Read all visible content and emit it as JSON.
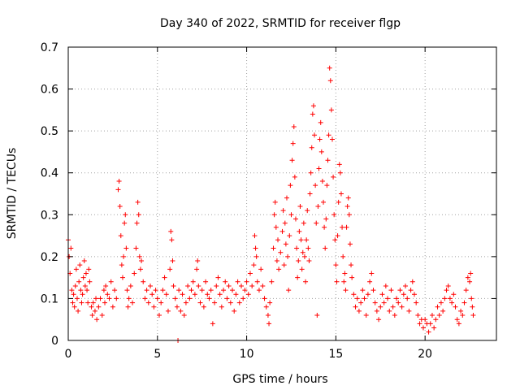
{
  "chart_data": {
    "type": "scatter",
    "title": "Day 340 of 2022, SRMTID for receiver flgp",
    "xlabel": "GPS time / hours",
    "ylabel": "SRMTID / TECUs",
    "xlim": [
      0,
      24
    ],
    "ylim": [
      0,
      0.7
    ],
    "grid": true,
    "marker": "+",
    "marker_color": "#ff0000",
    "xticks": [
      0,
      5,
      10,
      15,
      20
    ],
    "xtick_labels": [
      "0",
      "5",
      "10",
      "15",
      "20"
    ],
    "yticks": [
      0,
      0.1,
      0.2,
      0.3,
      0.4,
      0.5,
      0.6,
      0.7
    ],
    "ytick_labels": [
      "0",
      "0.1",
      "0.2",
      "0.3",
      "0.4",
      "0.5",
      "0.6",
      "0.7"
    ],
    "series": [
      {
        "name": "SRMTID",
        "points": [
          [
            0.0,
            0.24
          ],
          [
            0.05,
            0.2
          ],
          [
            0.1,
            0.16
          ],
          [
            0.15,
            0.22
          ],
          [
            0.2,
            0.12
          ],
          [
            0.25,
            0.09
          ],
          [
            0.3,
            0.11
          ],
          [
            0.35,
            0.08
          ],
          [
            0.4,
            0.13
          ],
          [
            0.45,
            0.17
          ],
          [
            0.5,
            0.1
          ],
          [
            0.55,
            0.07
          ],
          [
            0.6,
            0.14
          ],
          [
            0.65,
            0.18
          ],
          [
            0.7,
            0.12
          ],
          [
            0.75,
            0.09
          ],
          [
            0.8,
            0.11
          ],
          [
            0.85,
            0.15
          ],
          [
            0.9,
            0.19
          ],
          [
            0.95,
            0.13
          ],
          [
            1.0,
            0.16
          ],
          [
            1.05,
            0.12
          ],
          [
            1.1,
            0.09
          ],
          [
            1.15,
            0.17
          ],
          [
            1.2,
            0.14
          ],
          [
            1.3,
            0.08
          ],
          [
            1.35,
            0.06
          ],
          [
            1.4,
            0.09
          ],
          [
            1.5,
            0.07
          ],
          [
            1.55,
            0.1
          ],
          [
            1.6,
            0.05
          ],
          [
            1.7,
            0.08
          ],
          [
            1.8,
            0.1
          ],
          [
            1.9,
            0.06
          ],
          [
            2.0,
            0.12
          ],
          [
            2.05,
            0.09
          ],
          [
            2.1,
            0.13
          ],
          [
            2.2,
            0.11
          ],
          [
            2.3,
            0.1
          ],
          [
            2.4,
            0.14
          ],
          [
            2.5,
            0.08
          ],
          [
            2.6,
            0.12
          ],
          [
            2.7,
            0.1
          ],
          [
            2.8,
            0.36
          ],
          [
            2.85,
            0.38
          ],
          [
            2.9,
            0.32
          ],
          [
            2.95,
            0.25
          ],
          [
            3.0,
            0.18
          ],
          [
            3.05,
            0.15
          ],
          [
            3.1,
            0.2
          ],
          [
            3.15,
            0.28
          ],
          [
            3.2,
            0.3
          ],
          [
            3.25,
            0.22
          ],
          [
            3.3,
            0.12
          ],
          [
            3.35,
            0.08
          ],
          [
            3.4,
            0.1
          ],
          [
            3.5,
            0.13
          ],
          [
            3.6,
            0.09
          ],
          [
            3.7,
            0.16
          ],
          [
            3.8,
            0.22
          ],
          [
            3.85,
            0.28
          ],
          [
            3.9,
            0.33
          ],
          [
            3.95,
            0.3
          ],
          [
            4.0,
            0.2
          ],
          [
            4.05,
            0.17
          ],
          [
            4.1,
            0.19
          ],
          [
            4.2,
            0.14
          ],
          [
            4.3,
            0.1
          ],
          [
            4.4,
            0.12
          ],
          [
            4.5,
            0.09
          ],
          [
            4.6,
            0.13
          ],
          [
            4.7,
            0.11
          ],
          [
            4.8,
            0.08
          ],
          [
            4.9,
            0.12
          ],
          [
            5.0,
            0.1
          ],
          [
            5.1,
            0.06
          ],
          [
            5.2,
            0.09
          ],
          [
            5.3,
            0.12
          ],
          [
            5.4,
            0.15
          ],
          [
            5.5,
            0.11
          ],
          [
            5.6,
            0.07
          ],
          [
            5.7,
            0.17
          ],
          [
            5.75,
            0.26
          ],
          [
            5.8,
            0.24
          ],
          [
            5.85,
            0.19
          ],
          [
            5.9,
            0.13
          ],
          [
            6.0,
            0.1
          ],
          [
            6.1,
            0.08
          ],
          [
            6.15,
            0.0
          ],
          [
            6.2,
            0.12
          ],
          [
            6.3,
            0.07
          ],
          [
            6.4,
            0.11
          ],
          [
            6.5,
            0.06
          ],
          [
            6.6,
            0.09
          ],
          [
            6.7,
            0.13
          ],
          [
            6.8,
            0.1
          ],
          [
            6.9,
            0.12
          ],
          [
            7.0,
            0.14
          ],
          [
            7.1,
            0.11
          ],
          [
            7.2,
            0.17
          ],
          [
            7.25,
            0.19
          ],
          [
            7.3,
            0.13
          ],
          [
            7.4,
            0.09
          ],
          [
            7.5,
            0.12
          ],
          [
            7.6,
            0.08
          ],
          [
            7.7,
            0.14
          ],
          [
            7.8,
            0.11
          ],
          [
            7.9,
            0.1
          ],
          [
            8.0,
            0.12
          ],
          [
            8.1,
            0.04
          ],
          [
            8.2,
            0.09
          ],
          [
            8.3,
            0.13
          ],
          [
            8.4,
            0.15
          ],
          [
            8.5,
            0.11
          ],
          [
            8.6,
            0.08
          ],
          [
            8.7,
            0.12
          ],
          [
            8.8,
            0.14
          ],
          [
            8.9,
            0.1
          ],
          [
            9.0,
            0.13
          ],
          [
            9.1,
            0.09
          ],
          [
            9.2,
            0.12
          ],
          [
            9.3,
            0.07
          ],
          [
            9.4,
            0.11
          ],
          [
            9.5,
            0.14
          ],
          [
            9.6,
            0.09
          ],
          [
            9.7,
            0.13
          ],
          [
            9.8,
            0.1
          ],
          [
            9.9,
            0.12
          ],
          [
            10.0,
            0.14
          ],
          [
            10.1,
            0.11
          ],
          [
            10.2,
            0.16
          ],
          [
            10.3,
            0.13
          ],
          [
            10.4,
            0.18
          ],
          [
            10.45,
            0.25
          ],
          [
            10.5,
            0.22
          ],
          [
            10.55,
            0.2
          ],
          [
            10.6,
            0.14
          ],
          [
            10.7,
            0.12
          ],
          [
            10.8,
            0.17
          ],
          [
            10.9,
            0.13
          ],
          [
            11.0,
            0.1
          ],
          [
            11.1,
            0.08
          ],
          [
            11.2,
            0.06
          ],
          [
            11.25,
            0.04
          ],
          [
            11.3,
            0.09
          ],
          [
            11.4,
            0.14
          ],
          [
            11.5,
            0.22
          ],
          [
            11.55,
            0.3
          ],
          [
            11.6,
            0.33
          ],
          [
            11.65,
            0.27
          ],
          [
            11.7,
            0.19
          ],
          [
            11.75,
            0.24
          ],
          [
            11.8,
            0.17
          ],
          [
            11.9,
            0.21
          ],
          [
            12.0,
            0.26
          ],
          [
            12.05,
            0.31
          ],
          [
            12.1,
            0.18
          ],
          [
            12.15,
            0.28
          ],
          [
            12.2,
            0.23
          ],
          [
            12.25,
            0.34
          ],
          [
            12.3,
            0.2
          ],
          [
            12.35,
            0.12
          ],
          [
            12.4,
            0.25
          ],
          [
            12.45,
            0.37
          ],
          [
            12.5,
            0.3
          ],
          [
            12.55,
            0.43
          ],
          [
            12.6,
            0.47
          ],
          [
            12.65,
            0.51
          ],
          [
            12.7,
            0.39
          ],
          [
            12.75,
            0.29
          ],
          [
            12.8,
            0.22
          ],
          [
            12.85,
            0.15
          ],
          [
            12.9,
            0.19
          ],
          [
            12.95,
            0.26
          ],
          [
            13.0,
            0.32
          ],
          [
            13.05,
            0.24
          ],
          [
            13.1,
            0.17
          ],
          [
            13.15,
            0.21
          ],
          [
            13.2,
            0.28
          ],
          [
            13.25,
            0.2
          ],
          [
            13.3,
            0.14
          ],
          [
            13.35,
            0.24
          ],
          [
            13.4,
            0.31
          ],
          [
            13.45,
            0.22
          ],
          [
            13.5,
            0.19
          ],
          [
            13.55,
            0.35
          ],
          [
            13.6,
            0.4
          ],
          [
            13.65,
            0.46
          ],
          [
            13.7,
            0.54
          ],
          [
            13.75,
            0.56
          ],
          [
            13.8,
            0.49
          ],
          [
            13.85,
            0.37
          ],
          [
            13.9,
            0.28
          ],
          [
            13.95,
            0.06
          ],
          [
            14.0,
            0.32
          ],
          [
            14.05,
            0.41
          ],
          [
            14.1,
            0.48
          ],
          [
            14.15,
            0.52
          ],
          [
            14.2,
            0.45
          ],
          [
            14.25,
            0.38
          ],
          [
            14.3,
            0.33
          ],
          [
            14.35,
            0.27
          ],
          [
            14.4,
            0.22
          ],
          [
            14.45,
            0.29
          ],
          [
            14.5,
            0.37
          ],
          [
            14.55,
            0.43
          ],
          [
            14.6,
            0.49
          ],
          [
            14.65,
            0.65
          ],
          [
            14.7,
            0.62
          ],
          [
            14.75,
            0.55
          ],
          [
            14.8,
            0.48
          ],
          [
            14.85,
            0.39
          ],
          [
            14.9,
            0.3
          ],
          [
            14.95,
            0.24
          ],
          [
            15.0,
            0.18
          ],
          [
            15.05,
            0.14
          ],
          [
            15.1,
            0.25
          ],
          [
            15.15,
            0.33
          ],
          [
            15.2,
            0.42
          ],
          [
            15.25,
            0.4
          ],
          [
            15.3,
            0.35
          ],
          [
            15.35,
            0.27
          ],
          [
            15.4,
            0.2
          ],
          [
            15.45,
            0.14
          ],
          [
            15.5,
            0.16
          ],
          [
            15.55,
            0.12
          ],
          [
            15.6,
            0.27
          ],
          [
            15.65,
            0.32
          ],
          [
            15.7,
            0.34
          ],
          [
            15.75,
            0.3
          ],
          [
            15.8,
            0.23
          ],
          [
            15.85,
            0.18
          ],
          [
            15.9,
            0.15
          ],
          [
            16.0,
            0.11
          ],
          [
            16.1,
            0.08
          ],
          [
            16.2,
            0.1
          ],
          [
            16.3,
            0.07
          ],
          [
            16.4,
            0.09
          ],
          [
            16.5,
            0.12
          ],
          [
            16.6,
            0.1
          ],
          [
            16.7,
            0.06
          ],
          [
            16.8,
            0.11
          ],
          [
            16.9,
            0.14
          ],
          [
            17.0,
            0.16
          ],
          [
            17.1,
            0.12
          ],
          [
            17.2,
            0.09
          ],
          [
            17.3,
            0.07
          ],
          [
            17.4,
            0.05
          ],
          [
            17.5,
            0.08
          ],
          [
            17.6,
            0.11
          ],
          [
            17.7,
            0.09
          ],
          [
            17.8,
            0.13
          ],
          [
            17.9,
            0.1
          ],
          [
            18.0,
            0.07
          ],
          [
            18.1,
            0.12
          ],
          [
            18.2,
            0.08
          ],
          [
            18.3,
            0.06
          ],
          [
            18.4,
            0.1
          ],
          [
            18.5,
            0.09
          ],
          [
            18.6,
            0.12
          ],
          [
            18.7,
            0.08
          ],
          [
            18.8,
            0.11
          ],
          [
            18.9,
            0.13
          ],
          [
            19.0,
            0.1
          ],
          [
            19.1,
            0.07
          ],
          [
            19.2,
            0.12
          ],
          [
            19.3,
            0.14
          ],
          [
            19.4,
            0.11
          ],
          [
            19.5,
            0.09
          ],
          [
            19.6,
            0.06
          ],
          [
            19.7,
            0.04
          ],
          [
            19.8,
            0.05
          ],
          [
            19.9,
            0.03
          ],
          [
            20.0,
            0.05
          ],
          [
            20.1,
            0.04
          ],
          [
            20.2,
            0.02
          ],
          [
            20.3,
            0.04
          ],
          [
            20.4,
            0.06
          ],
          [
            20.5,
            0.03
          ],
          [
            20.6,
            0.05
          ],
          [
            20.7,
            0.08
          ],
          [
            20.8,
            0.06
          ],
          [
            20.9,
            0.09
          ],
          [
            21.0,
            0.07
          ],
          [
            21.1,
            0.1
          ],
          [
            21.2,
            0.12
          ],
          [
            21.3,
            0.13
          ],
          [
            21.4,
            0.1
          ],
          [
            21.5,
            0.09
          ],
          [
            21.6,
            0.11
          ],
          [
            21.7,
            0.08
          ],
          [
            21.8,
            0.05
          ],
          [
            21.9,
            0.04
          ],
          [
            22.0,
            0.07
          ],
          [
            22.1,
            0.06
          ],
          [
            22.2,
            0.09
          ],
          [
            22.3,
            0.12
          ],
          [
            22.4,
            0.15
          ],
          [
            22.5,
            0.14
          ],
          [
            22.55,
            0.16
          ],
          [
            22.6,
            0.1
          ],
          [
            22.65,
            0.08
          ],
          [
            22.7,
            0.06
          ]
        ]
      }
    ]
  }
}
